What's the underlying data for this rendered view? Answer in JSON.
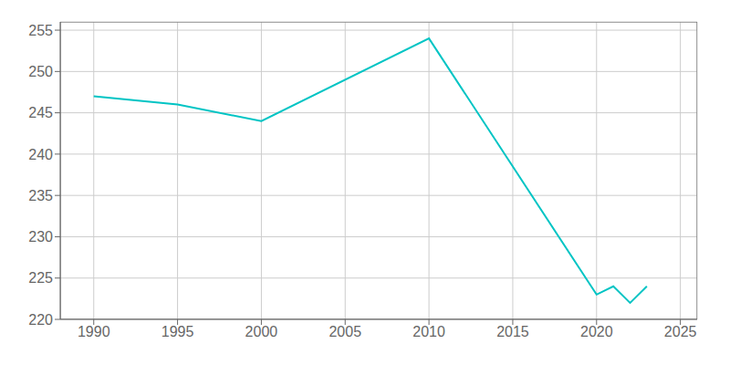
{
  "chart_data": {
    "type": "line",
    "x": [
      1990,
      1995,
      2000,
      2010,
      2020,
      2021,
      2022,
      2023
    ],
    "values": [
      247,
      246,
      244,
      254,
      223,
      224,
      222,
      224
    ],
    "color": "#00C4C4",
    "xlim": [
      1988,
      2026
    ],
    "ylim": [
      220,
      256
    ],
    "xticks": [
      1990,
      1995,
      2000,
      2005,
      2010,
      2015,
      2020,
      2025
    ],
    "yticks": [
      220,
      225,
      230,
      235,
      240,
      245,
      250,
      255
    ],
    "grid": true
  }
}
